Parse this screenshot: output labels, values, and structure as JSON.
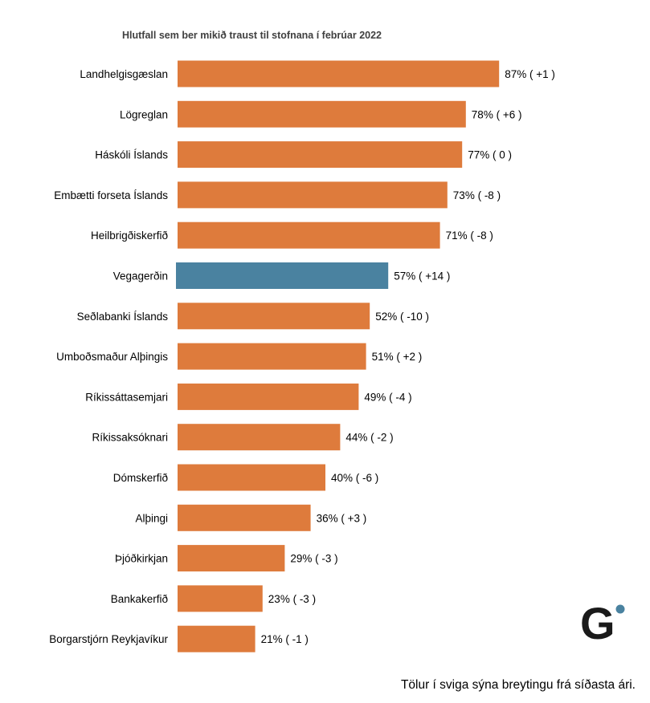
{
  "chart_data": {
    "type": "bar",
    "orientation": "horizontal",
    "title": "Hlutfall sem ber mikið traust til stofnana í febrúar 2022",
    "categories": [
      "Landhelgisgæslan",
      "Lögreglan",
      "Háskóli Íslands",
      "Embætti forseta Íslands",
      "Heilbrigðiskerfið",
      "Vegagerðin",
      "Seðlabanki Íslands",
      "Umboðsmaður Alþingis",
      "Ríkissáttasemjari",
      "Ríkissaksóknari",
      "Dómskerfið",
      "Alþingi",
      "Þjóðkirkjan",
      "Bankakerfið",
      "Borgarstjórn Reykjavíkur"
    ],
    "values": [
      87,
      78,
      77,
      73,
      71,
      57,
      52,
      51,
      49,
      44,
      40,
      36,
      29,
      23,
      21
    ],
    "changes": [
      "+1",
      "+6",
      "0",
      "-8",
      "-8",
      "+14",
      "-10",
      "+2",
      "-4",
      "-2",
      "-6",
      "+3",
      "-3",
      "-3",
      "-1"
    ],
    "labels": [
      "87% ( +1 )",
      "78% ( +6 )",
      "77% ( 0 )",
      "73% ( -8 )",
      "71% ( -8 )",
      "57% ( +14 )",
      "52% ( -10 )",
      "51% ( +2 )",
      "49% ( -4 )",
      "44% ( -2 )",
      "40% ( -6 )",
      "36% ( +3 )",
      "29% ( -3 )",
      "23% ( -3 )",
      "21% ( -1 )"
    ],
    "highlight_index": 5,
    "xlim": [
      0,
      100
    ],
    "xlabel": "",
    "ylabel": "",
    "grid": false,
    "legend": "none",
    "colors": {
      "default": "#DE7B3C",
      "highlight": "#4A82A0"
    }
  },
  "footnote": "Tölur í sviga sýna breytingu frá síðasta ári.",
  "logo": {
    "icon": "gallup-g-logo",
    "letter": "G",
    "color": "#1a1a1a",
    "dot_color": "#4A82A0"
  }
}
